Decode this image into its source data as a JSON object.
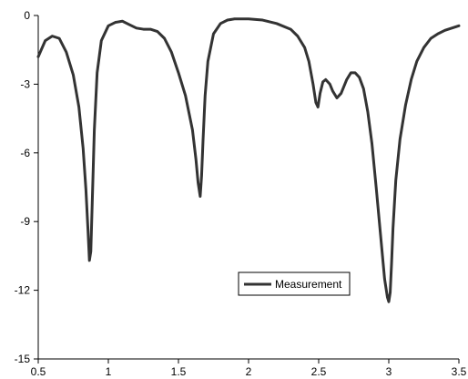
{
  "chart_data": {
    "type": "line",
    "title": "",
    "xlabel": "",
    "ylabel": "",
    "xlim": [
      0.5,
      3.5
    ],
    "ylim": [
      -15,
      0
    ],
    "xticks": [
      0.5,
      1,
      1.5,
      2,
      2.5,
      3,
      3.5
    ],
    "yticks": [
      0,
      -3,
      -6,
      -9,
      -12,
      -15
    ],
    "xtick_labels": [
      "0.5",
      "1",
      "1.5",
      "2",
      "2.5",
      "3",
      "3.5"
    ],
    "ytick_labels": [
      "0",
      "-3",
      "-6",
      "-9",
      "-12",
      "-15"
    ],
    "grid": false,
    "legend": {
      "placement": "center-right-lower",
      "entries": [
        "Measurement"
      ]
    },
    "series": [
      {
        "name": "Measurement",
        "color": "#333333",
        "x": [
          0.5,
          0.55,
          0.6,
          0.65,
          0.7,
          0.75,
          0.79,
          0.82,
          0.84,
          0.855,
          0.865,
          0.875,
          0.885,
          0.9,
          0.92,
          0.95,
          1.0,
          1.05,
          1.1,
          1.15,
          1.2,
          1.25,
          1.3,
          1.35,
          1.4,
          1.45,
          1.5,
          1.55,
          1.6,
          1.625,
          1.64,
          1.655,
          1.665,
          1.675,
          1.69,
          1.71,
          1.75,
          1.8,
          1.85,
          1.9,
          2.0,
          2.1,
          2.2,
          2.3,
          2.35,
          2.4,
          2.43,
          2.46,
          2.48,
          2.495,
          2.51,
          2.53,
          2.55,
          2.58,
          2.6,
          2.63,
          2.66,
          2.7,
          2.73,
          2.76,
          2.79,
          2.82,
          2.85,
          2.88,
          2.91,
          2.94,
          2.97,
          2.99,
          3.0,
          3.01,
          3.02,
          3.03,
          3.05,
          3.08,
          3.12,
          3.16,
          3.2,
          3.25,
          3.3,
          3.35,
          3.4,
          3.45,
          3.5
        ],
        "y": [
          -1.8,
          -1.1,
          -0.9,
          -1.0,
          -1.6,
          -2.6,
          -4.0,
          -5.8,
          -7.6,
          -9.4,
          -10.7,
          -10.3,
          -8.2,
          -5.0,
          -2.5,
          -1.1,
          -0.45,
          -0.3,
          -0.25,
          -0.4,
          -0.55,
          -0.6,
          -0.6,
          -0.7,
          -1.0,
          -1.6,
          -2.5,
          -3.5,
          -5.0,
          -6.3,
          -7.3,
          -7.9,
          -7.0,
          -5.5,
          -3.5,
          -2.0,
          -0.8,
          -0.35,
          -0.2,
          -0.15,
          -0.15,
          -0.2,
          -0.35,
          -0.6,
          -0.9,
          -1.4,
          -2.0,
          -3.0,
          -3.8,
          -4.0,
          -3.4,
          -2.9,
          -2.8,
          -3.0,
          -3.3,
          -3.6,
          -3.4,
          -2.8,
          -2.5,
          -2.5,
          -2.7,
          -3.2,
          -4.2,
          -5.6,
          -7.5,
          -9.5,
          -11.5,
          -12.3,
          -12.5,
          -12.1,
          -10.8,
          -9.3,
          -7.2,
          -5.4,
          -3.9,
          -2.8,
          -2.0,
          -1.4,
          -1.0,
          -0.8,
          -0.65,
          -0.55,
          -0.45
        ]
      }
    ]
  }
}
